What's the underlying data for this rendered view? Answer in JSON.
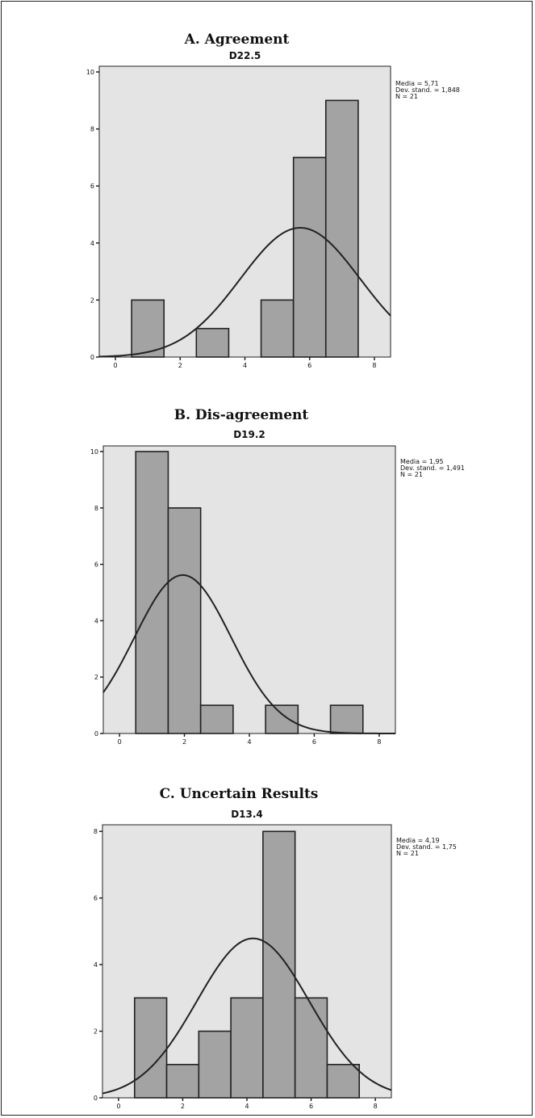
{
  "chart_data": [
    {
      "type": "bar",
      "title": "A. Agreement",
      "subtitle": "D22.5",
      "xlim": [
        -0.5,
        8.5
      ],
      "ylim": [
        0,
        10.2
      ],
      "xticks": [
        "0",
        "2",
        "4",
        "6",
        "8"
      ],
      "yticks": [
        "0",
        "2",
        "4",
        "6",
        "8",
        "10"
      ],
      "bins": [
        {
          "center": 1,
          "count": 2
        },
        {
          "center": 3,
          "count": 1
        },
        {
          "center": 5,
          "count": 2
        },
        {
          "center": 6,
          "count": 7
        },
        {
          "center": 7,
          "count": 9
        }
      ],
      "bin_width": 1,
      "normal_curve": {
        "mean": 5.71,
        "sd": 1.848,
        "n": 21
      },
      "stats": [
        "Media = 5,71",
        "Dev. stand. = 1,848",
        "N = 21"
      ],
      "grid": false
    },
    {
      "type": "bar",
      "title": "B. Dis-agreement",
      "subtitle": "D19.2",
      "xlim": [
        -0.5,
        8.5
      ],
      "ylim": [
        0,
        10.2
      ],
      "xticks": [
        "0",
        "2",
        "4",
        "6",
        "8"
      ],
      "yticks": [
        "0",
        "2",
        "4",
        "6",
        "8",
        "10"
      ],
      "bins": [
        {
          "center": 1,
          "count": 10
        },
        {
          "center": 2,
          "count": 8
        },
        {
          "center": 3,
          "count": 1
        },
        {
          "center": 5,
          "count": 1
        },
        {
          "center": 7,
          "count": 1
        }
      ],
      "bin_width": 1,
      "normal_curve": {
        "mean": 1.95,
        "sd": 1.491,
        "n": 21
      },
      "stats": [
        "Media = 1,95",
        "Dev. stand. = 1,491",
        "N = 21"
      ],
      "grid": false
    },
    {
      "type": "bar",
      "title": "C. Uncertain Results",
      "subtitle": "D13.4",
      "xlim": [
        -0.5,
        8.5
      ],
      "ylim": [
        0,
        8.2
      ],
      "xticks": [
        "0",
        "2",
        "4",
        "6",
        "8"
      ],
      "yticks": [
        "0",
        "2",
        "4",
        "6",
        "8"
      ],
      "bins": [
        {
          "center": 1,
          "count": 3
        },
        {
          "center": 2,
          "count": 1
        },
        {
          "center": 3,
          "count": 2
        },
        {
          "center": 4,
          "count": 3
        },
        {
          "center": 5,
          "count": 8
        },
        {
          "center": 6,
          "count": 3
        },
        {
          "center": 7,
          "count": 1
        }
      ],
      "bin_width": 1,
      "normal_curve": {
        "mean": 4.19,
        "sd": 1.75,
        "n": 21
      },
      "stats": [
        "Media = 4,19",
        "Dev. stand. = 1,75",
        "N = 21"
      ],
      "grid": false
    }
  ],
  "colors": {
    "plot_bg": "#e4e4e4",
    "bar_fill": "#a3a3a3",
    "bar_stroke": "#222222",
    "curve": "#222222",
    "axis": "#222222"
  }
}
